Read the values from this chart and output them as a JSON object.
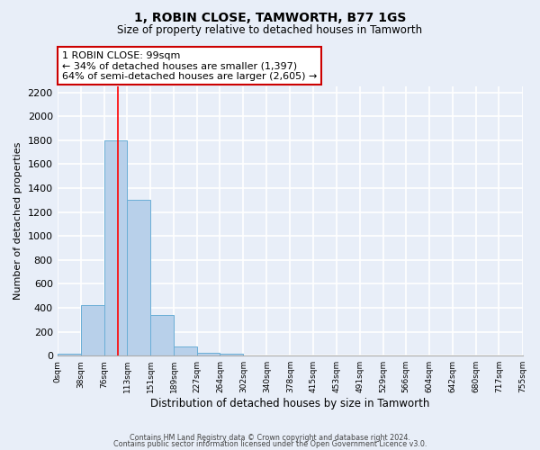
{
  "title": "1, ROBIN CLOSE, TAMWORTH, B77 1GS",
  "subtitle": "Size of property relative to detached houses in Tamworth",
  "xlabel": "Distribution of detached houses by size in Tamworth",
  "ylabel": "Number of detached properties",
  "bin_edges": [
    0,
    38,
    76,
    113,
    151,
    189,
    227,
    264,
    302,
    340,
    378,
    415,
    453,
    491,
    529,
    566,
    604,
    642,
    680,
    717,
    755
  ],
  "bin_labels": [
    "0sqm",
    "38sqm",
    "76sqm",
    "113sqm",
    "151sqm",
    "189sqm",
    "227sqm",
    "264sqm",
    "302sqm",
    "340sqm",
    "378sqm",
    "415sqm",
    "453sqm",
    "491sqm",
    "529sqm",
    "566sqm",
    "604sqm",
    "642sqm",
    "680sqm",
    "717sqm",
    "755sqm"
  ],
  "bar_heights": [
    15,
    420,
    1800,
    1300,
    340,
    80,
    25,
    20,
    0,
    0,
    0,
    0,
    0,
    0,
    0,
    0,
    0,
    0,
    0,
    0
  ],
  "bar_color": "#b8d0ea",
  "bar_edge_color": "#6aaed6",
  "red_line_x": 99,
  "annotation_title": "1 ROBIN CLOSE: 99sqm",
  "annotation_line1": "← 34% of detached houses are smaller (1,397)",
  "annotation_line2": "64% of semi-detached houses are larger (2,605) →",
  "annotation_box_color": "#ffffff",
  "annotation_box_edge_color": "#cc0000",
  "ylim": [
    0,
    2250
  ],
  "yticks": [
    0,
    200,
    400,
    600,
    800,
    1000,
    1200,
    1400,
    1600,
    1800,
    2000,
    2200
  ],
  "background_color": "#e8eef8",
  "grid_color": "#ffffff",
  "footer_line1": "Contains HM Land Registry data © Crown copyright and database right 2024.",
  "footer_line2": "Contains public sector information licensed under the Open Government Licence v3.0."
}
